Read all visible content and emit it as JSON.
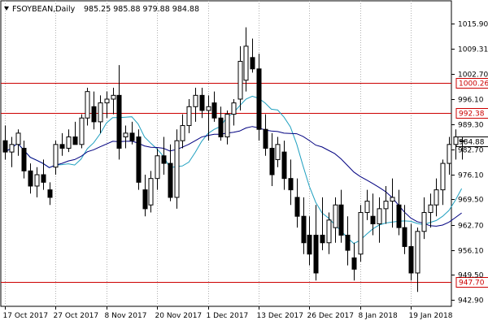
{
  "chart_data": {
    "type": "candlestick",
    "symbol": "FSOYBEAN,Daily",
    "ohlc_readout": "985.25 985.88 979.88 984.88",
    "ylim": [
      942.9,
      1019.0
    ],
    "y_ticks": [
      "1015.90",
      "1009.31",
      "1002.70",
      "996.10",
      "989.30",
      "982.70",
      "976.10",
      "969.50",
      "962.70",
      "956.10",
      "949.50",
      "942.90"
    ],
    "x_ticks": [
      {
        "index": 0,
        "label": "17 Oct 2017"
      },
      {
        "index": 8,
        "label": "27 Oct 2017"
      },
      {
        "index": 16,
        "label": "8 Nov 2017"
      },
      {
        "index": 24,
        "label": "20 Nov 2017"
      },
      {
        "index": 32,
        "label": "1 Dec 2017"
      },
      {
        "index": 40,
        "label": "13 Dec 2017"
      },
      {
        "index": 48,
        "label": "26 Dec 2017"
      },
      {
        "index": 56,
        "label": "8 Jan 2018"
      },
      {
        "index": 64,
        "label": "19 Jan 2018"
      }
    ],
    "levels": [
      {
        "value": 1000.26,
        "label": "1000.26",
        "color": "#cc0000"
      },
      {
        "value": 992.38,
        "label": "992.38",
        "color": "#cc0000"
      },
      {
        "value": 947.7,
        "label": "947.70",
        "color": "#cc0000"
      }
    ],
    "current_price": {
      "value": 984.88,
      "label": "984.88"
    },
    "colors": {
      "bull": "#ffffff",
      "bear": "#000000",
      "fast_ma": "#20a0c0",
      "slow_ma": "#000080",
      "level": "#cc0000",
      "grid": "#b0b0b0"
    },
    "candles": [
      [
        985,
        989,
        980,
        982
      ],
      [
        982,
        986,
        978,
        984
      ],
      [
        984,
        988,
        981,
        987
      ],
      [
        983,
        985,
        975,
        977
      ],
      [
        977,
        979,
        971,
        973
      ],
      [
        973,
        978,
        970,
        976
      ],
      [
        976,
        980,
        972,
        974
      ],
      [
        972,
        974,
        968,
        970
      ],
      [
        978,
        985,
        976,
        984
      ],
      [
        984,
        987,
        981,
        983
      ],
      [
        983,
        988,
        982,
        986
      ],
      [
        986,
        990,
        984,
        984
      ],
      [
        984,
        992,
        983,
        991
      ],
      [
        991,
        999,
        989,
        998
      ],
      [
        994,
        998,
        988,
        990
      ],
      [
        990,
        997,
        987,
        995
      ],
      [
        995,
        998,
        991,
        996
      ],
      [
        996,
        999,
        992,
        997
      ],
      [
        997,
        1005,
        980,
        983
      ],
      [
        986,
        989,
        983,
        987
      ],
      [
        987,
        990,
        984,
        985
      ],
      [
        986,
        988,
        972,
        974
      ],
      [
        972,
        976,
        965,
        967
      ],
      [
        968,
        977,
        966,
        975
      ],
      [
        975,
        983,
        972,
        981
      ],
      [
        981,
        986,
        976,
        979
      ],
      [
        979,
        984,
        969,
        970
      ],
      [
        970,
        988,
        967,
        985
      ],
      [
        985,
        992,
        983,
        989
      ],
      [
        989,
        996,
        987,
        994
      ],
      [
        994,
        999,
        990,
        997
      ],
      [
        997,
        999,
        991,
        993
      ],
      [
        993,
        997,
        985,
        994
      ],
      [
        995,
        998,
        990,
        991
      ],
      [
        991,
        994,
        985,
        986
      ],
      [
        986,
        993,
        984,
        992
      ],
      [
        992,
        996,
        989,
        995
      ],
      [
        996,
        1010,
        993,
        1006
      ],
      [
        1001,
        1015,
        998,
        1010
      ],
      [
        1007,
        1012,
        1003,
        1004
      ],
      [
        1004,
        1008,
        985,
        988
      ],
      [
        988,
        992,
        981,
        983
      ],
      [
        983,
        987,
        973,
        976
      ],
      [
        980,
        986,
        978,
        984
      ],
      [
        982,
        985,
        972,
        975
      ],
      [
        975,
        980,
        968,
        972
      ],
      [
        970,
        975,
        962,
        965
      ],
      [
        965,
        970,
        955,
        958
      ],
      [
        960,
        965,
        952,
        955
      ],
      [
        960,
        968,
        948,
        950
      ],
      [
        960,
        970,
        956,
        958
      ],
      [
        958,
        966,
        955,
        964
      ],
      [
        962,
        970,
        958,
        968
      ],
      [
        968,
        972,
        958,
        960
      ],
      [
        960,
        965,
        952,
        956
      ],
      [
        954,
        958,
        948,
        951
      ],
      [
        955,
        968,
        953,
        966
      ],
      [
        966,
        972,
        964,
        969
      ],
      [
        965,
        971,
        960,
        963
      ],
      [
        963,
        970,
        958,
        967
      ],
      [
        967,
        973,
        963,
        969
      ],
      [
        969,
        975,
        962,
        970
      ],
      [
        968,
        972,
        960,
        962
      ],
      [
        962,
        968,
        955,
        957
      ],
      [
        957,
        963,
        948,
        950
      ],
      [
        950,
        962,
        945,
        961
      ],
      [
        961,
        970,
        959,
        966
      ],
      [
        966,
        971,
        962,
        968
      ],
      [
        968,
        975,
        965,
        972
      ],
      [
        972,
        980,
        968,
        979
      ],
      [
        979,
        986,
        976,
        984
      ],
      [
        984,
        988,
        980,
        986
      ],
      [
        985,
        986,
        980,
        985
      ]
    ]
  }
}
